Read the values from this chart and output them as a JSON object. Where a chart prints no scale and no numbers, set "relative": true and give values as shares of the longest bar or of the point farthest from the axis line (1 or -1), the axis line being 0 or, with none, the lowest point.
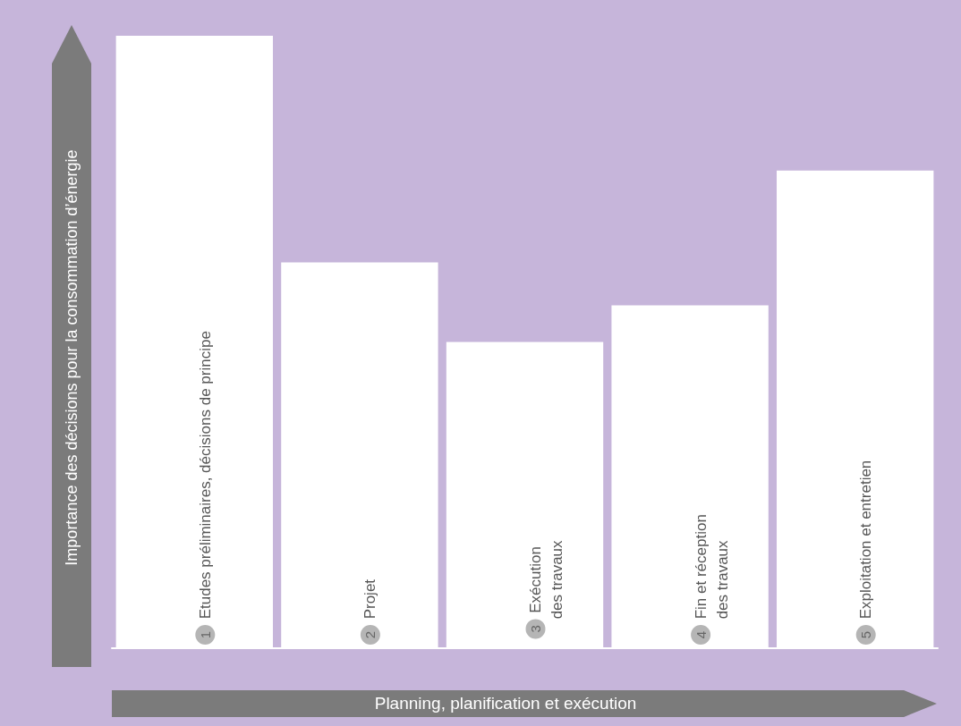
{
  "chart_data": {
    "type": "bar",
    "relative": true,
    "xlabel": "Planning, planification et exécution",
    "ylabel": "Importance des décisions pour la consommation d’énergie",
    "categories": [
      "Etudes préliminaires, décisions de principe",
      "Projet",
      "Exécution\ndes travaux",
      "Fin et réception\ndes travaux",
      "Exploitation et entretien"
    ],
    "values": [
      1,
      0.63,
      0.5,
      0.56,
      0.78
    ],
    "color": "#ffffff",
    "annotations": [
      "1",
      "2",
      "3",
      "4",
      "5"
    ]
  }
}
